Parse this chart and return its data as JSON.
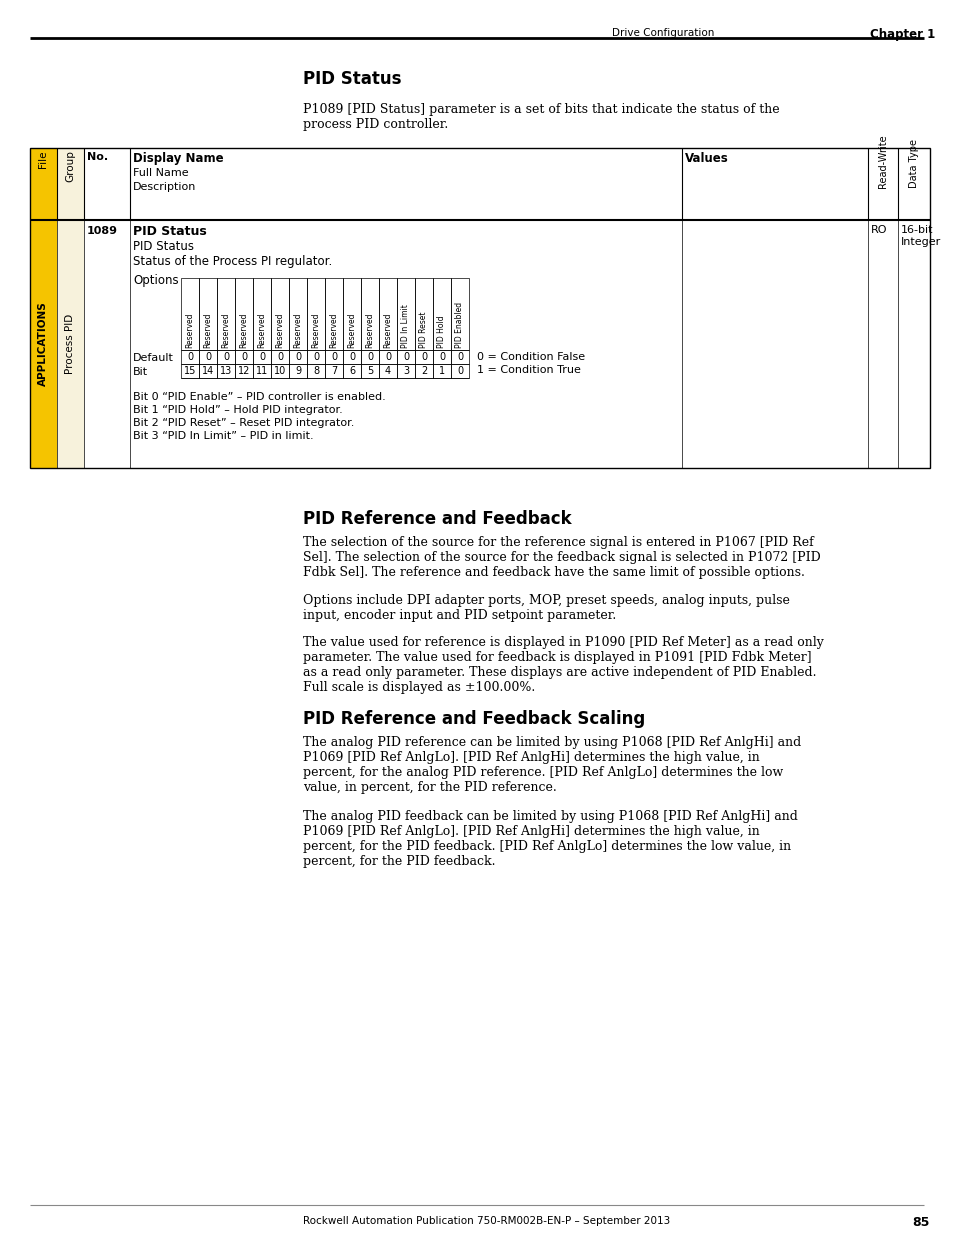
{
  "page_header_left": "Drive Configuration",
  "page_header_right": "Chapter 1",
  "page_footer": "Rockwell Automation Publication 750-RM002B-EN-P – September 2013",
  "page_number": "85",
  "section1_title": "PID Status",
  "section1_intro": "P1089 [PID Status] parameter is a set of bits that indicate the status of the\nprocess PID controller.",
  "table_row_no": "1089",
  "table_row_name": "PID Status",
  "table_row_fullname": "PID Status",
  "table_row_desc": "Status of the Process PI regulator.",
  "table_rw": "RO",
  "table_dtype": "16-bit\nInteger",
  "options_label": "Options",
  "options_cols": [
    "Reserved",
    "Reserved",
    "Reserved",
    "Reserved",
    "Reserved",
    "Reserved",
    "Reserved",
    "Reserved",
    "Reserved",
    "Reserved",
    "Reserved",
    "Reserved",
    "PID In Limit",
    "PID Reset",
    "PID Hold",
    "PID Enabled"
  ],
  "default_label": "Default",
  "default_vals": [
    "0",
    "0",
    "0",
    "0",
    "0",
    "0",
    "0",
    "0",
    "0",
    "0",
    "0",
    "0",
    "0",
    "0",
    "0",
    "0"
  ],
  "bit_label": "Bit",
  "bit_vals": [
    "15",
    "14",
    "13",
    "12",
    "11",
    "10",
    "9",
    "8",
    "7",
    "6",
    "5",
    "4",
    "3",
    "2",
    "1",
    "0"
  ],
  "condition_false": "0 = Condition False",
  "condition_true": "1 = Condition True",
  "bit_notes": [
    "Bit 0 “PID Enable” – PID controller is enabled.",
    "Bit 1 “PID Hold” – Hold PID integrator.",
    "Bit 2 “PID Reset” – Reset PID integrator.",
    "Bit 3 “PID In Limit” – PID in limit."
  ],
  "sidebar_top": "APPLICATIONS",
  "sidebar_mid": "Process PID",
  "section2_title": "PID Reference and Feedback",
  "section2_para1": "The selection of the source for the reference signal is entered in P1067 [PID Ref\nSel]. The selection of the source for the feedback signal is selected in P1072 [PID\nFdbk Sel]. The reference and feedback have the same limit of possible options.",
  "section2_para2": "Options include DPI adapter ports, MOP, preset speeds, analog inputs, pulse\ninput, encoder input and PID setpoint parameter.",
  "section2_para3": "The value used for reference is displayed in P1090 [PID Ref Meter] as a read only\nparameter. The value used for feedback is displayed in P1091 [PID Fdbk Meter]\nas a read only parameter. These displays are active independent of PID Enabled.\nFull scale is displayed as ±100.00%.",
  "section3_title": "PID Reference and Feedback Scaling",
  "section3_para1": "The analog PID reference can be limited by using P1068 [PID Ref AnlgHi] and\nP1069 [PID Ref AnlgLo]. [PID Ref AnlgHi] determines the high value, in\npercent, for the analog PID reference. [PID Ref AnlgLo] determines the low\nvalue, in percent, for the PID reference.",
  "section3_para2": "The analog PID feedback can be limited by using P1068 [PID Ref AnlgHi] and\nP1069 [PID Ref AnlgLo]. [PID Ref AnlgHi] determines the high value, in\npercent, for the PID feedback. [PID Ref AnlgLo] determines the low value, in\npercent, for the PID feedback.",
  "bg_color": "#ffffff",
  "sidebar_yellow": "#f5c400",
  "sidebar_cream": "#f7f2dc",
  "table_border": "#000000"
}
